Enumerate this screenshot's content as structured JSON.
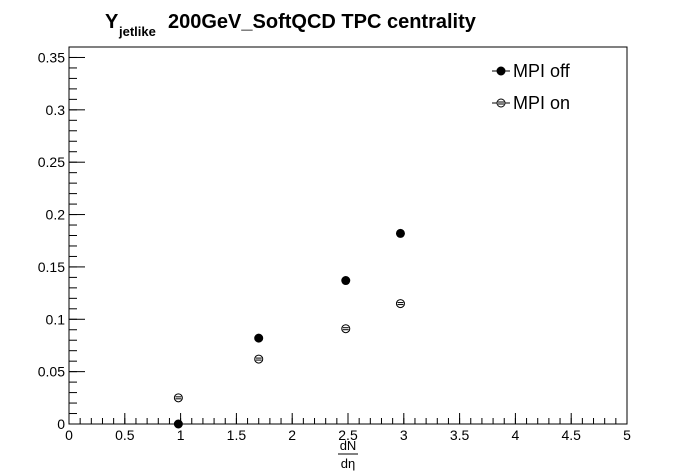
{
  "chart_data": {
    "type": "scatter",
    "title": {
      "symbol": "Y",
      "subscript": "jetlike",
      "text": "200GeV_SoftQCD TPC centrality"
    },
    "xlabel": {
      "numerator": "dN",
      "denominator": "dη"
    },
    "ylabel": "",
    "xlim": [
      0,
      5
    ],
    "ylim": [
      0,
      0.36
    ],
    "x_ticks": [
      "0",
      "0.5",
      "1",
      "1.5",
      "2",
      "2.5",
      "3",
      "3.5",
      "4",
      "4.5",
      "5"
    ],
    "y_ticks": [
      "0",
      "0.05",
      "0.1",
      "0.15",
      "0.2",
      "0.25",
      "0.3",
      "0.35"
    ],
    "grid": false,
    "legend_position": "top-right",
    "series": [
      {
        "name": "MPI off",
        "marker": "filled-circle",
        "points": [
          {
            "x": 0.98,
            "y": 0.0
          },
          {
            "x": 1.7,
            "y": 0.082
          },
          {
            "x": 2.48,
            "y": 0.137
          },
          {
            "x": 2.97,
            "y": 0.182
          }
        ]
      },
      {
        "name": "MPI on",
        "marker": "open-circle",
        "points": [
          {
            "x": 0.98,
            "y": 0.025
          },
          {
            "x": 1.7,
            "y": 0.062
          },
          {
            "x": 2.48,
            "y": 0.091
          },
          {
            "x": 2.97,
            "y": 0.115
          }
        ]
      }
    ]
  }
}
